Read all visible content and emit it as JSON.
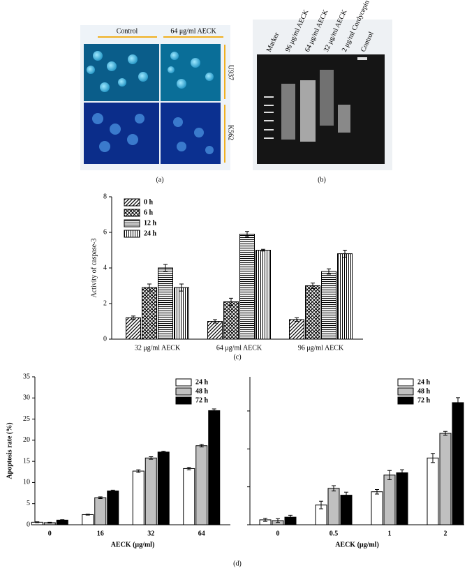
{
  "panel_labels": [
    "(a)",
    "(b)",
    "(c)",
    "(d)"
  ],
  "panel_a": {
    "columns": [
      "Control",
      "64 μg/ml AECK"
    ],
    "rows": [
      "U937",
      "K562"
    ]
  },
  "panel_b": {
    "lanes": [
      "Marker",
      "96 μg/ml AECK",
      "64 μg/ml AECK",
      "32 μg/ml AECK",
      "2 μg/ml Cordycepin",
      "Control"
    ]
  },
  "chart_data": [
    {
      "type": "bar",
      "y_label": "Activity of caspase-3",
      "categories": [
        "32 μg/ml AECK",
        "64 μg/ml AECK",
        "96 μg/ml AECK"
      ],
      "ylim": [
        0,
        8
      ],
      "yticks": [
        0,
        2,
        4,
        6,
        8
      ],
      "legend": "upper left",
      "series": [
        {
          "name": "0 h",
          "color": "#ffffff",
          "pattern": "diagonal",
          "values": [
            1.2,
            1.0,
            1.1
          ],
          "errors": [
            0.1,
            0.1,
            0.1
          ]
        },
        {
          "name": "6 h",
          "color": "#ffffff",
          "pattern": "cross",
          "values": [
            2.9,
            2.1,
            3.0
          ],
          "errors": [
            0.2,
            0.2,
            0.15
          ]
        },
        {
          "name": "12 h",
          "color": "#ffffff",
          "pattern": "horizontal",
          "values": [
            4.0,
            5.9,
            3.8
          ],
          "errors": [
            0.2,
            0.15,
            0.15
          ]
        },
        {
          "name": "24 h",
          "color": "#ffffff",
          "pattern": "vertical",
          "values": [
            2.9,
            5.0,
            4.8
          ],
          "errors": [
            0.2,
            0.05,
            0.2
          ]
        }
      ]
    },
    {
      "type": "bar",
      "y_label": "Apoptosis rate (%)",
      "x_label": "AECK (μg/ml)",
      "categories": [
        "0",
        "16",
        "32",
        "64"
      ],
      "ylim": [
        0,
        35
      ],
      "yticks": [
        0,
        5,
        10,
        15,
        20,
        25,
        30,
        35
      ],
      "legend": "upper right",
      "series": [
        {
          "name": "24 h",
          "color": "#ffffff",
          "values": [
            0.6,
            2.4,
            12.7,
            13.3
          ],
          "errors": [
            0.1,
            0.1,
            0.3,
            0.3
          ]
        },
        {
          "name": "48 h",
          "color": "#c0c0c0",
          "values": [
            0.5,
            6.4,
            15.8,
            18.7
          ],
          "errors": [
            0.1,
            0.2,
            0.3,
            0.3
          ]
        },
        {
          "name": "72 h",
          "color": "#000000",
          "values": [
            1.1,
            8.0,
            17.2,
            27.0
          ],
          "errors": [
            0.1,
            0.2,
            0.2,
            0.4
          ]
        }
      ]
    },
    {
      "type": "bar",
      "x_label": "AECK (μg/ml)",
      "categories": [
        "0",
        "0.5",
        "1",
        "2"
      ],
      "ylim": [
        0,
        3.9
      ],
      "yticks": [
        0,
        1,
        2,
        3
      ],
      "ytick_labels": false,
      "legend": "upper right",
      "series": [
        {
          "name": "24 h",
          "color": "#ffffff",
          "values": [
            0.13,
            0.52,
            0.87,
            1.76
          ],
          "errors": [
            0.04,
            0.1,
            0.06,
            0.12
          ]
        },
        {
          "name": "48 h",
          "color": "#c0c0c0",
          "values": [
            0.11,
            0.96,
            1.31,
            2.41
          ],
          "errors": [
            0.05,
            0.07,
            0.12,
            0.05
          ]
        },
        {
          "name": "72 h",
          "color": "#000000",
          "values": [
            0.2,
            0.78,
            1.37,
            3.22
          ],
          "errors": [
            0.05,
            0.08,
            0.08,
            0.13
          ]
        }
      ]
    }
  ]
}
